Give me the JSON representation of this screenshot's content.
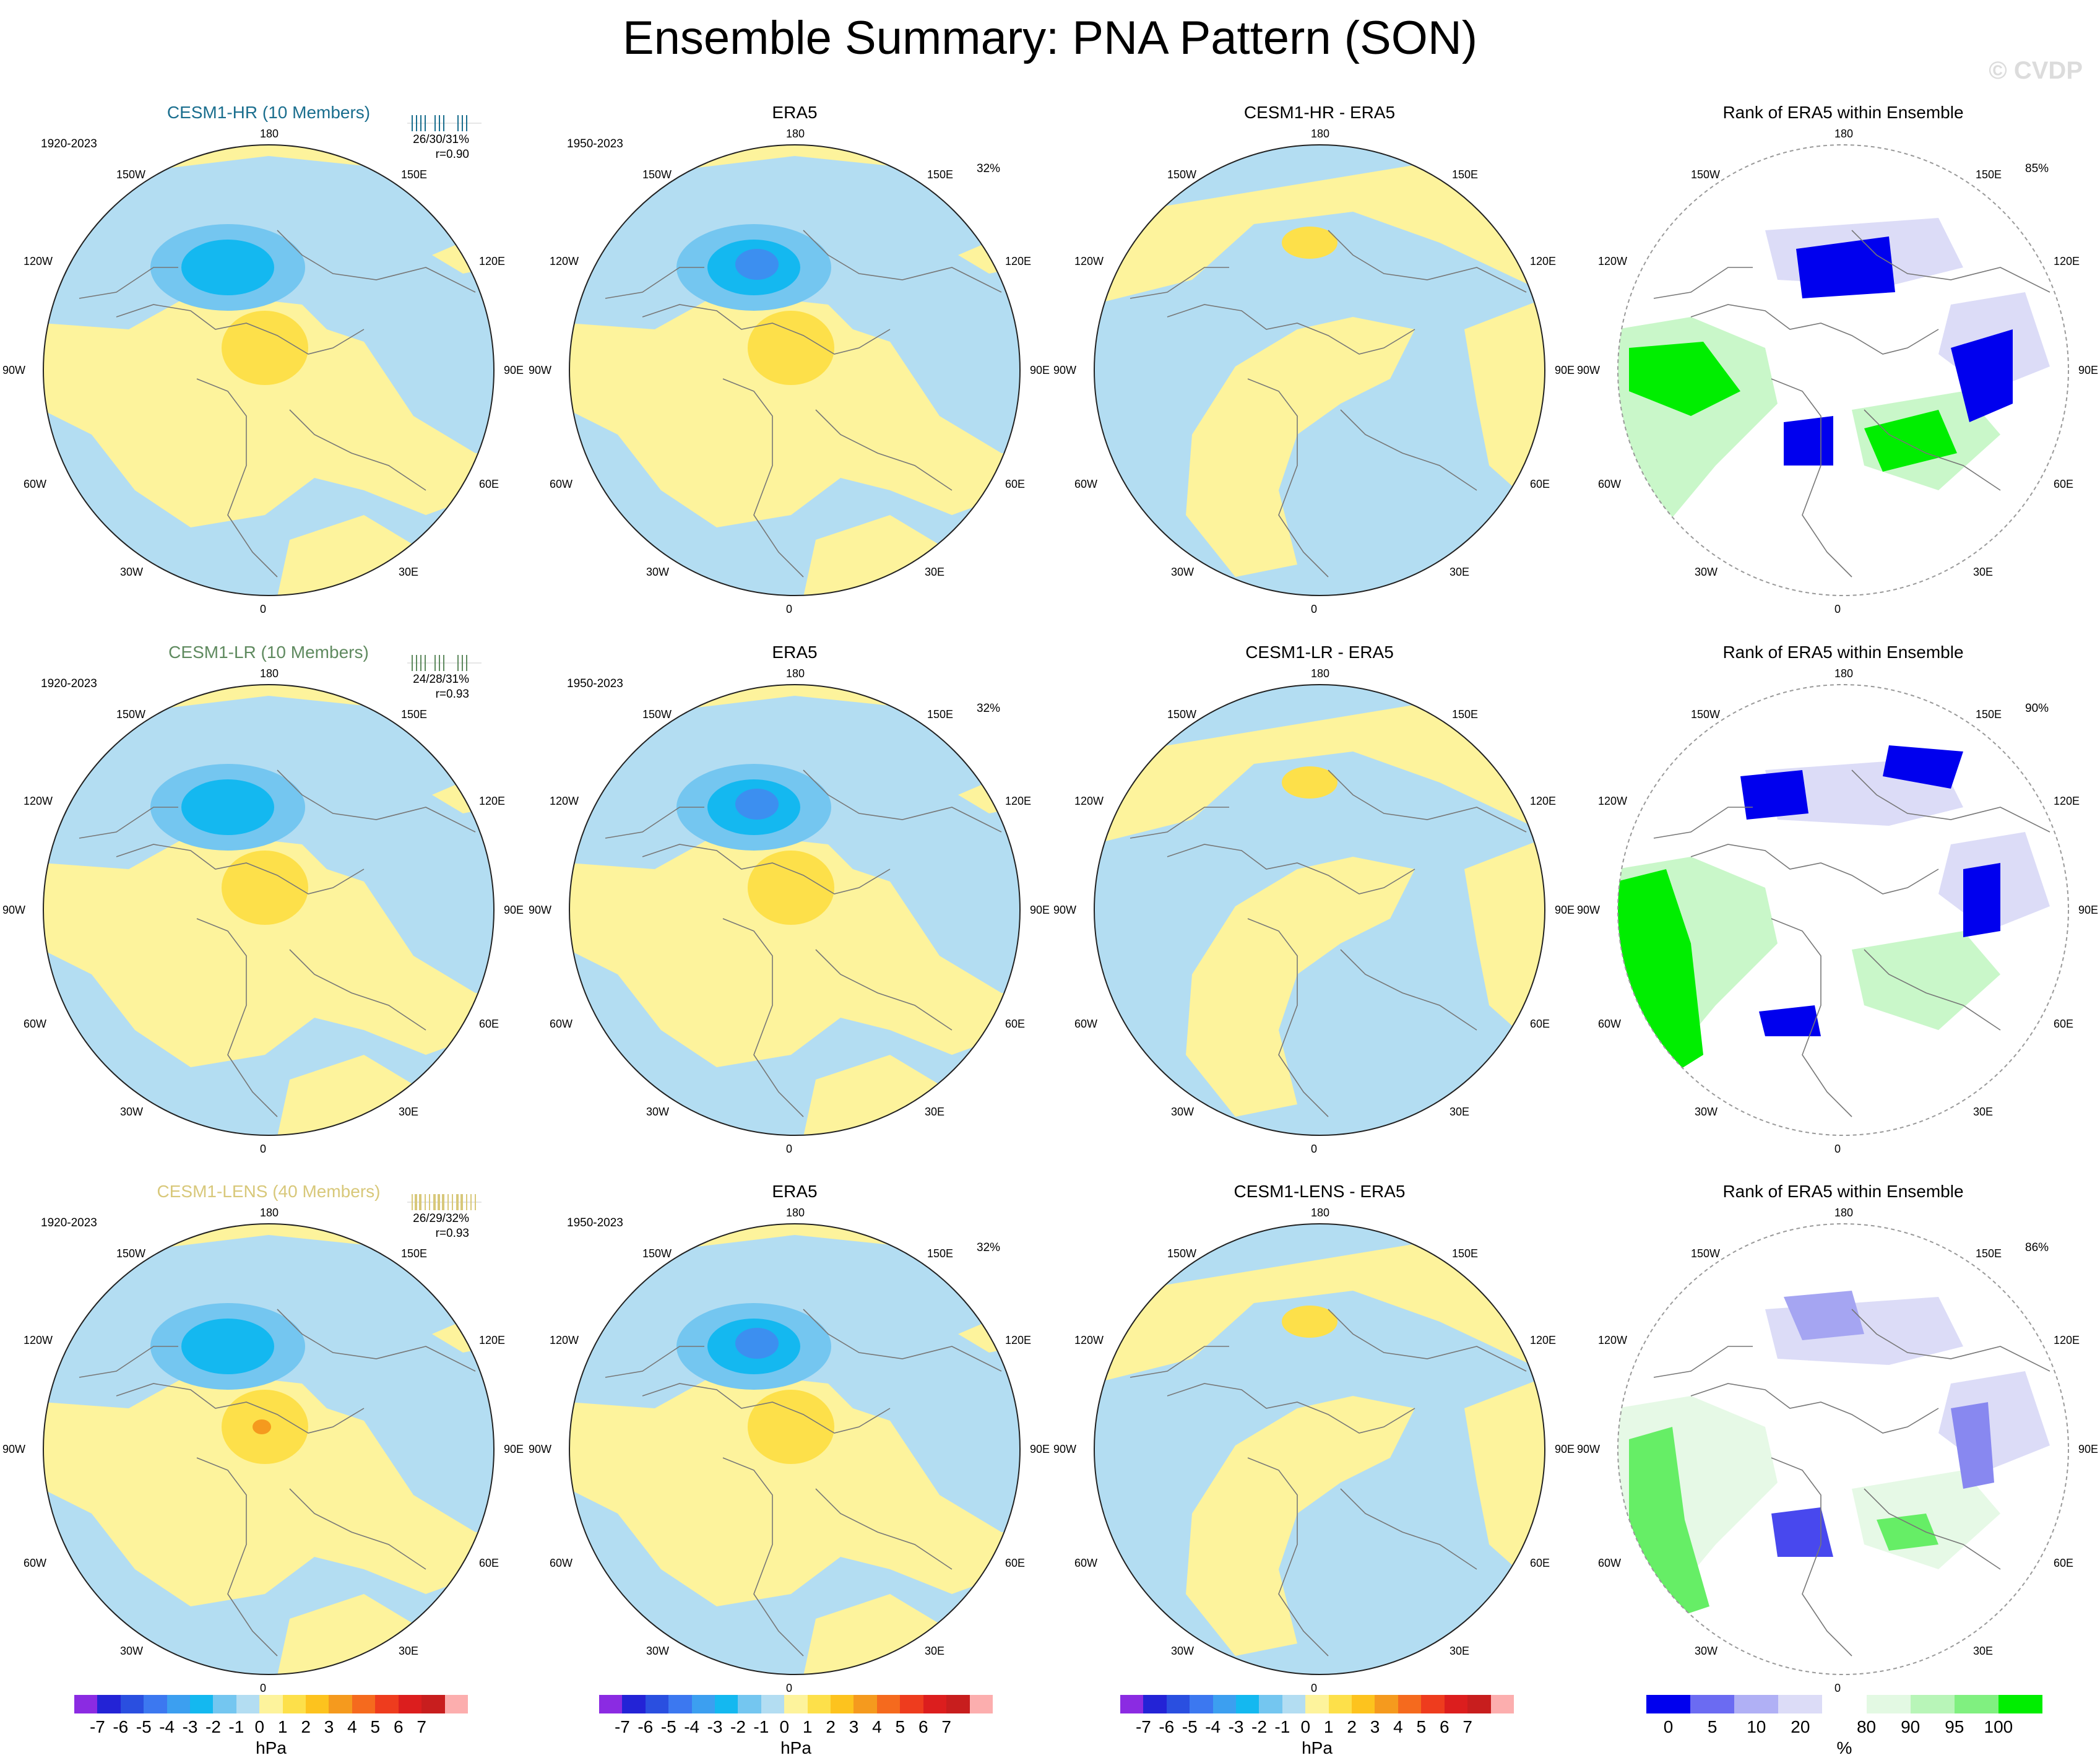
{
  "title": "Ensemble Summary: PNA Pattern (SON)",
  "watermark": "© CVDP",
  "colors": {
    "neg0_1": "#b3ddf2",
    "neg1_2": "#74c6f0",
    "neg2_3": "#14b8f0",
    "neg3_4": "#3c8ff0",
    "pos0_1": "#fdf39c",
    "pos1_2": "#fde04a",
    "pos2_3": "#fdc31e",
    "pos3_4": "#f59a1e",
    "rank_low": "#0000ee",
    "rank_mid": "#dcdcf7",
    "rank_white": "#ffffff",
    "rank_hi": "#c9f7c9",
    "rank_top": "#00ee00",
    "hr_color": "#1a6e8e",
    "lr_color": "#5f8a5f",
    "lens_color": "#d8c87a"
  },
  "rows": [
    {
      "model_title": "CESM1-HR (10 Members)",
      "model_period": "1920-2023",
      "model_stats_line1": "26/30/31%",
      "model_stats_line2": "r=0.90",
      "obs_title": "ERA5",
      "obs_period": "1950-2023",
      "obs_pct": "32%",
      "diff_title": "CESM1-HR - ERA5",
      "rank_title": "Rank of ERA5 within Ensemble",
      "rank_pct": "85%"
    },
    {
      "model_title": "CESM1-LR (10 Members)",
      "model_period": "1920-2023",
      "model_stats_line1": "24/28/31%",
      "model_stats_line2": "r=0.93",
      "obs_title": "ERA5",
      "obs_period": "1950-2023",
      "obs_pct": "32%",
      "diff_title": "CESM1-LR - ERA5",
      "rank_title": "Rank of ERA5 within Ensemble",
      "rank_pct": "90%"
    },
    {
      "model_title": "CESM1-LENS (40 Members)",
      "model_period": "1920-2023",
      "model_stats_line1": "26/29/32%",
      "model_stats_line2": "r=0.93",
      "obs_title": "ERA5",
      "obs_period": "1950-2023",
      "obs_pct": "32%",
      "diff_title": "CESM1-LENS - ERA5",
      "rank_title": "Rank of ERA5 within Ensemble",
      "rank_pct": "86%"
    }
  ],
  "lon_labels": {
    "top": "180",
    "bottom": "0",
    "upper_left": "150W",
    "upper_right": "150E",
    "mid_upper_left": "120W",
    "mid_upper_right": "120E",
    "left": "90W",
    "right": "90E",
    "mid_lower_left": "60W",
    "mid_lower_right": "60E",
    "lower_left": "30W",
    "lower_right": "30E"
  },
  "chart_data": {
    "type": "heatmap",
    "description_fields": "polar stereographic maps of sea level pressure PNA pattern regression",
    "colorbar_hpa": {
      "ticks": [
        "-7",
        "-6",
        "-5",
        "-4",
        "-3",
        "-2",
        "-1",
        "0",
        "1",
        "2",
        "3",
        "4",
        "5",
        "6",
        "7"
      ],
      "colors": [
        "#8b2be2",
        "#2323d6",
        "#2a4fe0",
        "#3c78f0",
        "#3c9ff0",
        "#14b8f0",
        "#74c6f0",
        "#b3ddf2",
        "#fdf39c",
        "#fde04a",
        "#fdc31e",
        "#f59a1e",
        "#f56a1e",
        "#ee3c1e",
        "#dc1e1e",
        "#c81e1e",
        "#fcaeae"
      ],
      "unit": "hPa"
    },
    "colorbar_rank": {
      "ticks": [
        "0",
        "5",
        "10",
        "20",
        "80",
        "90",
        "95",
        "100"
      ],
      "colors": [
        "#0000ee",
        "#6b6bf2",
        "#b0b0f5",
        "#dcdcf7",
        "#ffffff",
        "#e3f9e3",
        "#b8f5b8",
        "#80f080",
        "#00ee00"
      ],
      "unit": "%"
    }
  }
}
